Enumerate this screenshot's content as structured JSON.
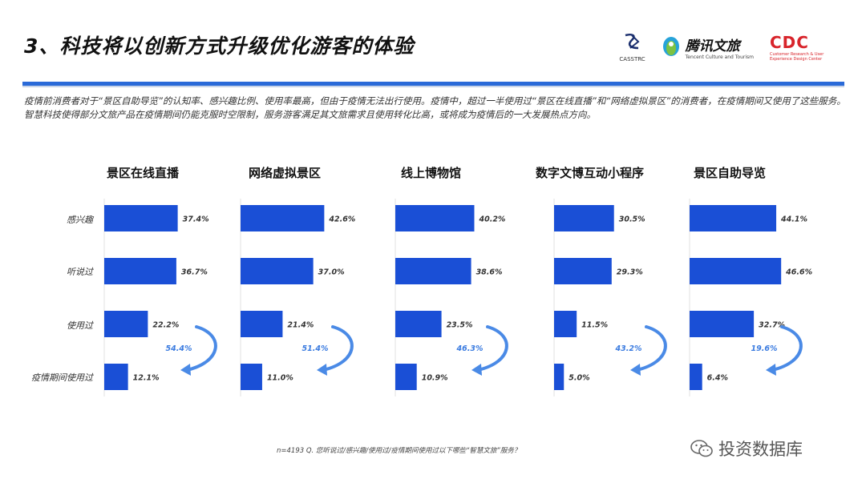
{
  "title": "3、科技将以创新方式升级优化游客的体验",
  "logos": {
    "casstrc": "CASSTRC",
    "tencent": "腾讯文旅",
    "tencent_sub": "Tencent Culture and Tourism",
    "cdc": "CDC",
    "cdc_sub": "Customer Research & User Experience Design Center"
  },
  "intro": "疫情前消费者对于“景区自助导览”的认知率、感兴趣比例、使用率最高，但由于疫情无法出行使用。疫情中，超过一半使用过“景区在线直播”和“网络虚拟景区”的消费者，在疫情期间又使用了这些服务。智慧科技使得部分文旅产品在疫情期间仍能克服时空限制，服务游客满足其文旅需求且使用转化比高，或将成为疫情后的一大发展热点方向。",
  "footnote": "n=4193   Q. 您听说过/感兴趣/使用过/疫情期间使用过以下哪些“智慧文旅”服务？",
  "watermark": "投资数据库",
  "colors": {
    "bar": "#1a4fd6",
    "arrow": "#4a8ae6",
    "rule": "#2a6ad8"
  },
  "chart_data": [
    {
      "type": "bar",
      "title": "景区在线直播",
      "categories": [
        "感兴趣",
        "听说过",
        "使用过",
        "疫情期间使用过"
      ],
      "values": [
        37.4,
        36.7,
        22.2,
        12.1
      ],
      "value_labels": [
        "37.4%",
        "36.7%",
        "22.2%",
        "12.1%"
      ],
      "conversion": "54.4%",
      "xlim": [
        0,
        50
      ]
    },
    {
      "type": "bar",
      "title": "网络虚拟景区",
      "categories": [
        "感兴趣",
        "听说过",
        "使用过",
        "疫情期间使用过"
      ],
      "values": [
        42.6,
        37.0,
        21.4,
        11.0
      ],
      "value_labels": [
        "42.6%",
        "37.0%",
        "21.4%",
        "11.0%"
      ],
      "conversion": "51.4%",
      "xlim": [
        0,
        50
      ]
    },
    {
      "type": "bar",
      "title": "线上博物馆",
      "categories": [
        "感兴趣",
        "听说过",
        "使用过",
        "疫情期间使用过"
      ],
      "values": [
        40.2,
        38.6,
        23.5,
        10.9
      ],
      "value_labels": [
        "40.2%",
        "38.6%",
        "23.5%",
        "10.9%"
      ],
      "conversion": "46.3%",
      "xlim": [
        0,
        50
      ]
    },
    {
      "type": "bar",
      "title": "数字文博互动小程序",
      "categories": [
        "感兴趣",
        "听说过",
        "使用过",
        "疫情期间使用过"
      ],
      "values": [
        30.5,
        29.3,
        11.5,
        5.0
      ],
      "value_labels": [
        "30.5%",
        "29.3%",
        "11.5%",
        "5.0%"
      ],
      "conversion": "43.2%",
      "xlim": [
        0,
        50
      ]
    },
    {
      "type": "bar",
      "title": "景区自助导览",
      "categories": [
        "感兴趣",
        "听说过",
        "使用过",
        "疫情期间使用过"
      ],
      "values": [
        44.1,
        46.6,
        32.7,
        6.4
      ],
      "value_labels": [
        "44.1%",
        "46.6%",
        "32.7%",
        "6.4%"
      ],
      "conversion": "19.6%",
      "xlim": [
        0,
        50
      ]
    }
  ]
}
